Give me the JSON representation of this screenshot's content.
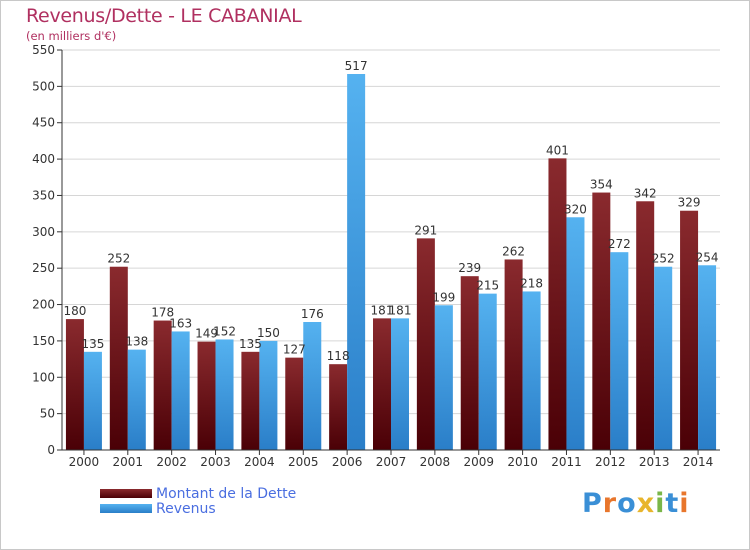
{
  "title": "Revenus/Dette - LE CABANIAL",
  "subtitle": "(en milliers d'€)",
  "legend": [
    {
      "label": "Montant de la Dette",
      "color": "#6b0f14"
    },
    {
      "label": "Revenus",
      "color": "#3d9be0"
    }
  ],
  "logo": {
    "text": "Proxiti",
    "letters": [
      "P",
      "r",
      "o",
      "x",
      "i",
      "t",
      "i"
    ],
    "colors": [
      "#3a8fd6",
      "#e8762c",
      "#3a8fd6",
      "#e8b52c",
      "#7ab648",
      "#3a8fd6",
      "#e8762c"
    ]
  },
  "chart_data": {
    "type": "bar",
    "categories": [
      "2000",
      "2001",
      "2002",
      "2003",
      "2004",
      "2005",
      "2006",
      "2007",
      "2008",
      "2009",
      "2010",
      "2011",
      "2012",
      "2013",
      "2014"
    ],
    "series": [
      {
        "name": "Montant de la Dette",
        "values": [
          180,
          252,
          178,
          149,
          135,
          127,
          118,
          181,
          291,
          239,
          262,
          401,
          354,
          342,
          329
        ]
      },
      {
        "name": "Revenus",
        "values": [
          135,
          138,
          163,
          152,
          150,
          176,
          517,
          181,
          199,
          215,
          218,
          320,
          272,
          252,
          254
        ]
      }
    ],
    "title": "Revenus/Dette - LE CABANIAL",
    "ylim": [
      0,
      550
    ],
    "yticks": [
      0,
      50,
      100,
      150,
      200,
      250,
      300,
      350,
      400,
      450,
      500,
      550
    ],
    "grid": true,
    "legend_position": "bottom-left"
  }
}
